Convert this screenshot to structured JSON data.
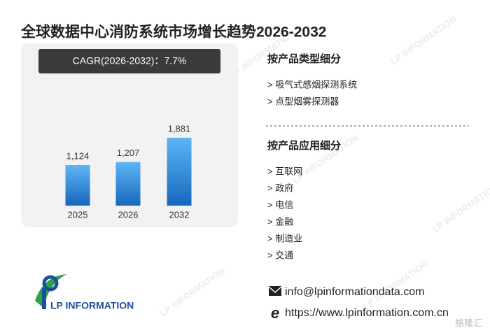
{
  "chart_data": {
    "type": "bar",
    "title": "全球数据中心消防系统市场增长趋势2026-2032",
    "annotation": "CAGR(2026-2032)：7.7%",
    "categories": [
      "2025",
      "2026",
      "2032"
    ],
    "values": [
      1124,
      1207,
      1881
    ],
    "value_labels": [
      "1,124",
      "1,207",
      "1,881"
    ],
    "color": "#2f8fe0"
  },
  "segments": [
    {
      "heading": "按产品类型细分",
      "items": [
        "> 吸气式感烟探测系统",
        "> 点型烟雾探测器"
      ]
    },
    {
      "heading": "按产品应用细分",
      "items": [
        "> 互联网",
        "> 政府",
        "> 电信",
        "> 金融",
        "> 制造业",
        "> 交通"
      ]
    }
  ],
  "contact": {
    "email": "info@lpinformationdata.com",
    "website": "https://www.lpinformation.com.cn"
  },
  "logo": "LP INFORMATION",
  "corner_mark": "格隆汇"
}
